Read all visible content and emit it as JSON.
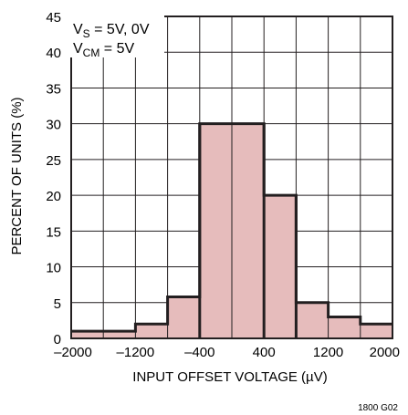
{
  "chart_data": {
    "type": "bar",
    "bin_edges": [
      -2000,
      -1600,
      -1200,
      -800,
      -400,
      0,
      400,
      800,
      1200,
      1600,
      2000
    ],
    "values": [
      1,
      1,
      2,
      5.8,
      30,
      30,
      20,
      5,
      3,
      2
    ],
    "xlabel": "INPUT OFFSET VOLTAGE (µV)",
    "ylabel": "PERCENT OF UNITS (%)",
    "xlim": [
      -2000,
      2000
    ],
    "ylim": [
      0,
      45
    ],
    "x_ticks": [
      {
        "value": -2000,
        "label": "–2000"
      },
      {
        "value": -1200,
        "label": "–1200"
      },
      {
        "value": -400,
        "label": "–400"
      },
      {
        "value": 400,
        "label": "400"
      },
      {
        "value": 1200,
        "label": "1200"
      },
      {
        "value": 2000,
        "label": "2000"
      }
    ],
    "y_ticks": [
      0,
      5,
      10,
      15,
      20,
      25,
      30,
      35,
      40,
      45
    ],
    "grid": true,
    "bar_color": "#e6bcbc",
    "bar_edge_color": "#231f20",
    "annotation": {
      "line1": {
        "prefix": "V",
        "sub": "S",
        "suffix": " = 5V, 0V"
      },
      "line2": {
        "prefix": "V",
        "sub": "CM",
        "suffix": " = 5V"
      }
    }
  },
  "figure_code": "1800 G02"
}
